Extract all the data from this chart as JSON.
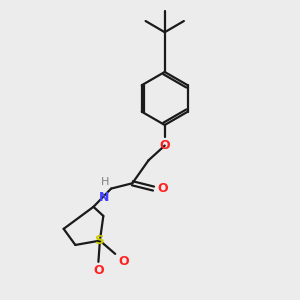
{
  "bg_color": "#ececec",
  "bond_color": "#1a1a1a",
  "N_color": "#4040ff",
  "O_color": "#ff2020",
  "S_color": "#cccc00",
  "H_color": "#808080",
  "line_width": 1.6,
  "fig_size": [
    3.0,
    3.0
  ],
  "dpi": 100,
  "xlim": [
    0,
    10
  ],
  "ylim": [
    0,
    10
  ]
}
